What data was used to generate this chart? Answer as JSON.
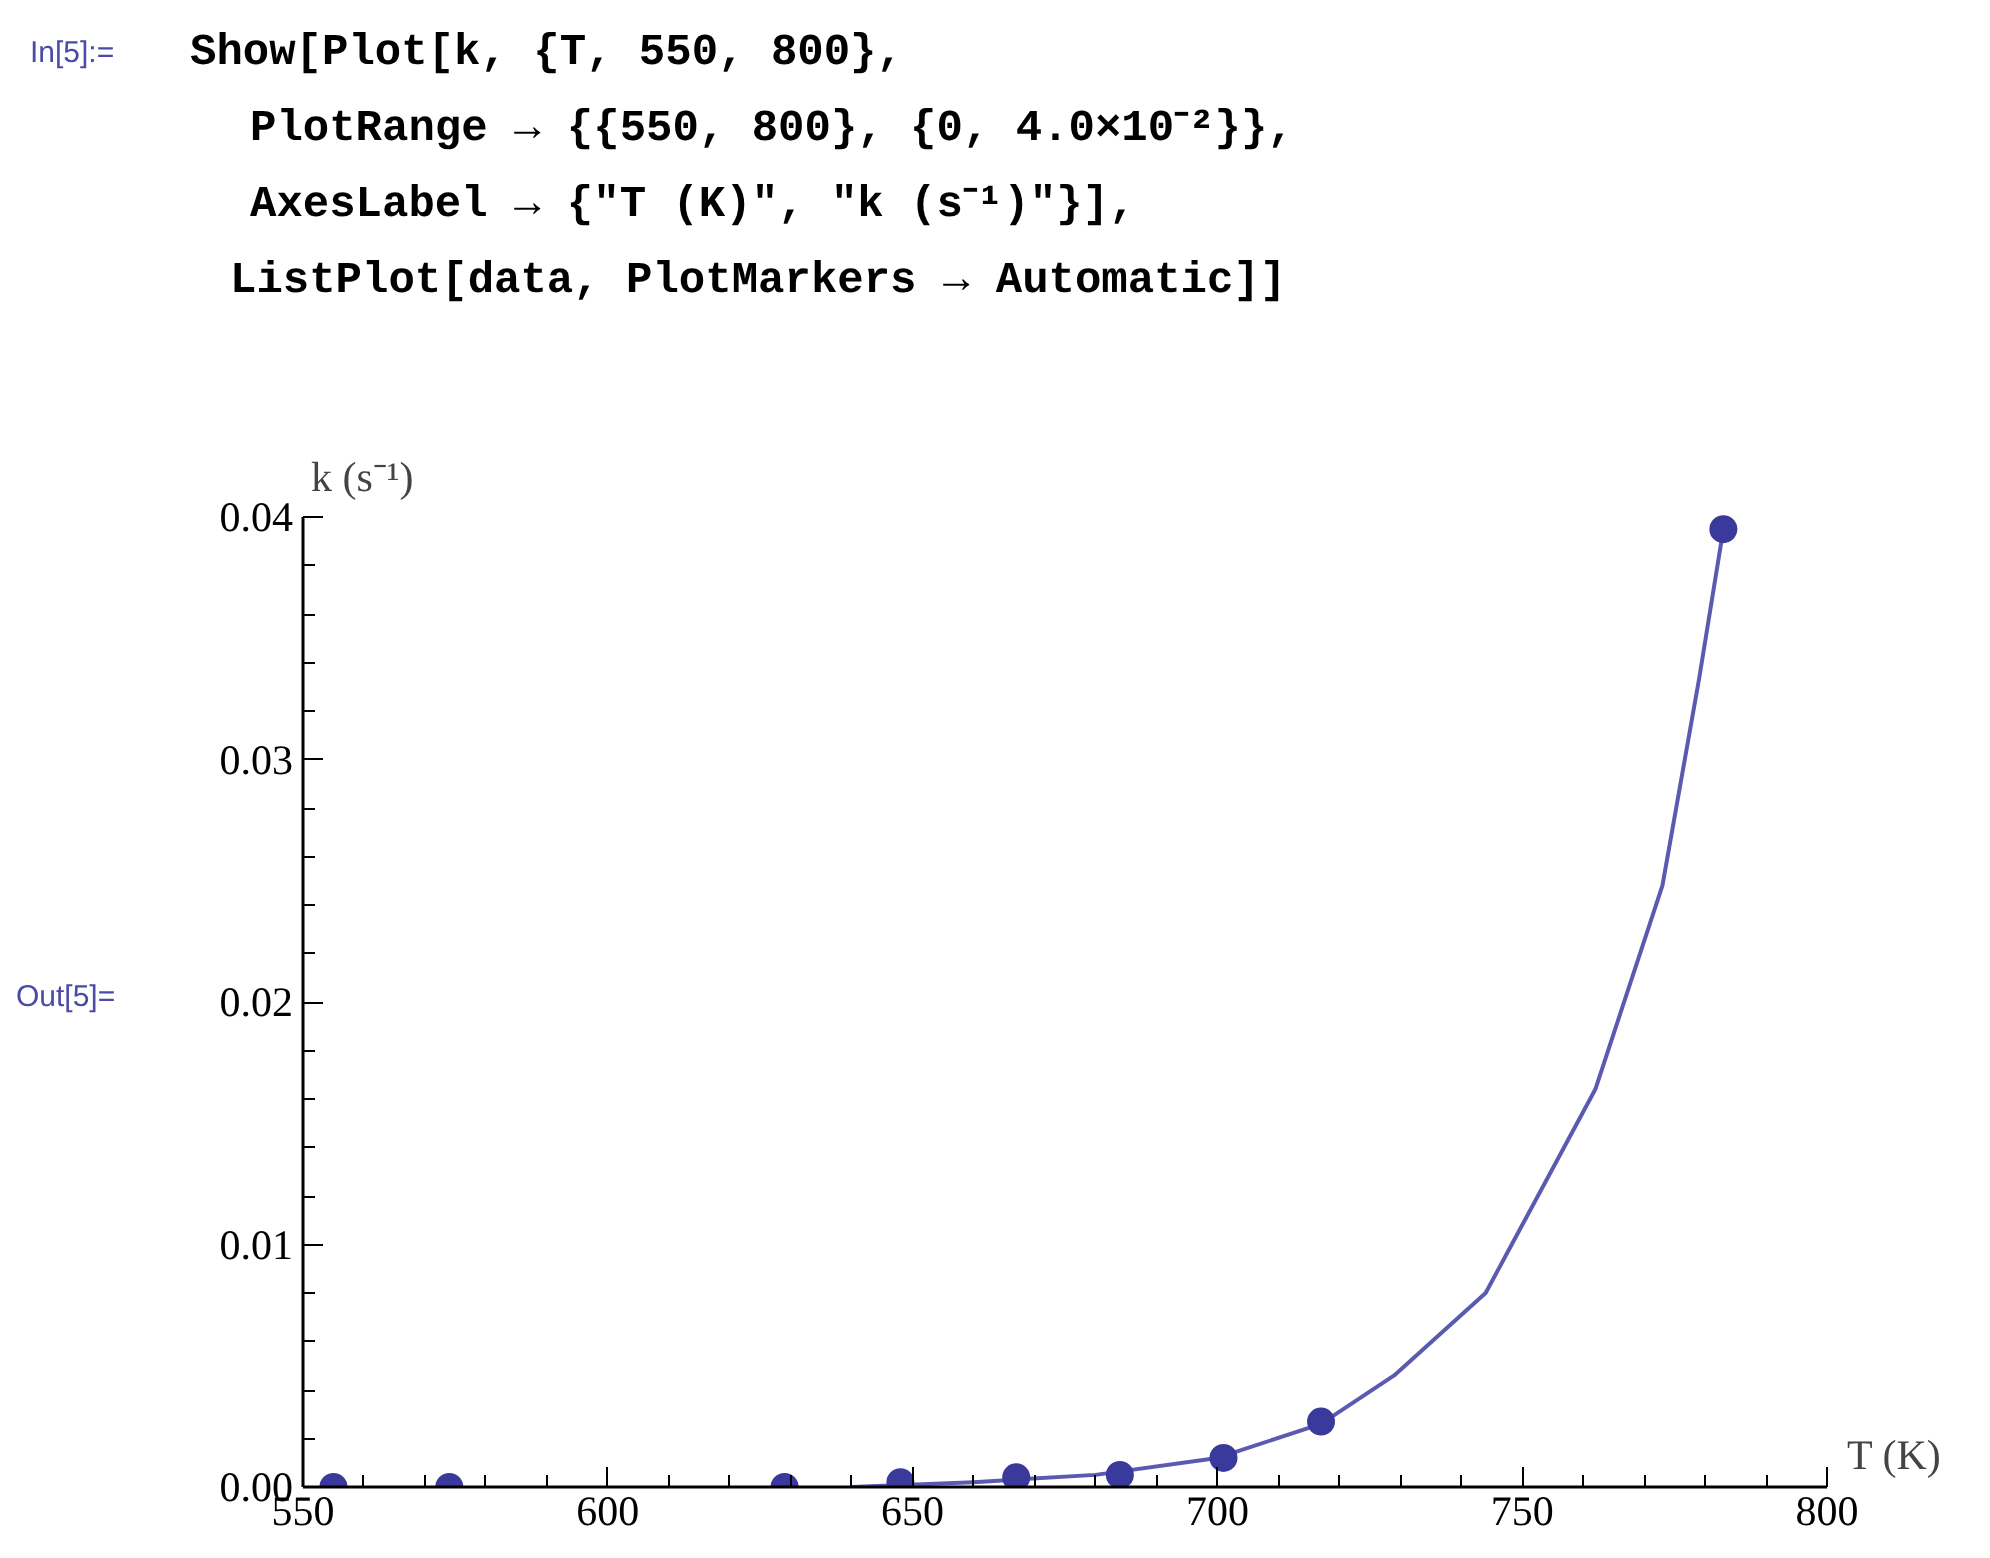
{
  "chart_data": {
    "type": "scatter",
    "xlabel": "T (K)",
    "ylabel": "k (s⁻¹)",
    "annotations": [
      "In[5]:=",
      "Show[Plot[k, {T, 550, 800},",
      "PlotRange → {{550, 800}, {0, 4.0×10⁻²}},",
      "AxesLabel → {\"T (K)\", \"k (s⁻¹)\"}],",
      "ListPlot[data, PlotMarkers → Automatic]]",
      "Out[5]="
    ],
    "xlim": [
      550,
      800
    ],
    "ylim": [
      0,
      0.04
    ],
    "xticks": [
      550,
      600,
      650,
      700,
      750,
      800
    ],
    "yticks": [
      {
        "value": 0,
        "label": "0.00"
      },
      0.01,
      0.02,
      0.03,
      0.04
    ],
    "grid": false,
    "series": [
      {
        "type": "line",
        "marker": "none",
        "color": "#5a5ab0",
        "x": [
          640,
          660,
          680,
          700,
          717,
          729,
          744,
          762,
          773,
          779,
          783
        ],
        "values": [
          0,
          0.0002,
          0.0005,
          0.0012,
          0.0026,
          0.0046,
          0.008,
          0.0164,
          0.0248,
          0.0333,
          0.0395
        ]
      },
      {
        "marker": "circle",
        "color": "#3a3a9c",
        "x": [
          555,
          574,
          629,
          648,
          667,
          684,
          701,
          717,
          783
        ],
        "values": [
          0,
          0,
          0,
          0.0002,
          0.0004,
          0.0005,
          0.0012,
          0.0027,
          0.0395
        ]
      }
    ]
  }
}
